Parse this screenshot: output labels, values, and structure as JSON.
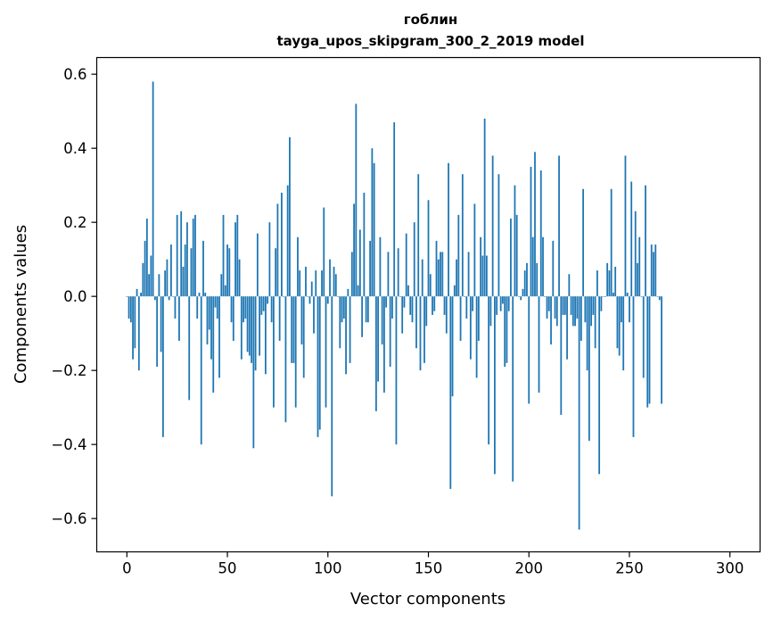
{
  "chart_data": {
    "type": "bar",
    "title_line1": "гоблин",
    "title_line2": "tayga_upos_skipgram_300_2_2019 model",
    "xlabel": "Vector components",
    "ylabel": "Components values",
    "xlim": [
      -15,
      315
    ],
    "ylim": [
      -0.69,
      0.645
    ],
    "xticks": [
      0,
      50,
      100,
      150,
      200,
      250,
      300
    ],
    "xtick_labels": [
      "0",
      "50",
      "100",
      "150",
      "200",
      "250",
      "300"
    ],
    "yticks": [
      -0.6,
      -0.4,
      -0.2,
      0.0,
      0.2,
      0.4,
      0.6
    ],
    "ytick_labels": [
      "−0.6",
      "−0.4",
      "−0.2",
      "0.0",
      "0.2",
      "0.4",
      "0.6"
    ],
    "bar_color": "#1f77b4",
    "grid": false,
    "values": [
      0.0,
      -0.06,
      -0.07,
      -0.17,
      -0.14,
      0.02,
      -0.2,
      0.01,
      0.09,
      0.15,
      0.21,
      0.06,
      0.11,
      0.58,
      -0.01,
      -0.19,
      0.06,
      -0.15,
      -0.38,
      0.07,
      0.1,
      -0.01,
      0.14,
      0.0,
      -0.06,
      0.22,
      -0.12,
      0.23,
      0.08,
      0.14,
      0.2,
      -0.28,
      0.13,
      0.21,
      0.22,
      -0.06,
      0.01,
      -0.4,
      0.15,
      0.01,
      -0.13,
      -0.09,
      -0.17,
      -0.26,
      -0.03,
      -0.06,
      -0.22,
      0.06,
      0.22,
      0.03,
      0.14,
      0.13,
      -0.07,
      -0.12,
      0.2,
      0.22,
      0.1,
      -0.17,
      -0.07,
      -0.06,
      -0.15,
      -0.16,
      -0.18,
      -0.41,
      -0.2,
      0.17,
      -0.16,
      -0.05,
      -0.04,
      -0.21,
      -0.02,
      0.2,
      -0.07,
      -0.3,
      0.13,
      0.25,
      -0.12,
      0.28,
      0.0,
      -0.34,
      0.3,
      0.43,
      -0.18,
      -0.18,
      -0.3,
      0.16,
      0.07,
      -0.13,
      -0.22,
      0.08,
      0.0,
      -0.02,
      0.04,
      -0.1,
      0.07,
      -0.38,
      -0.36,
      0.07,
      0.24,
      -0.3,
      -0.02,
      0.1,
      -0.54,
      0.08,
      0.06,
      0.0,
      -0.14,
      -0.07,
      -0.06,
      -0.21,
      0.02,
      -0.18,
      0.12,
      0.25,
      0.52,
      0.03,
      0.18,
      -0.11,
      0.28,
      -0.07,
      -0.07,
      0.15,
      0.4,
      0.36,
      -0.31,
      -0.23,
      0.16,
      -0.13,
      -0.26,
      -0.03,
      0.12,
      -0.19,
      -0.06,
      0.47,
      -0.4,
      0.13,
      0.0,
      -0.1,
      -0.03,
      0.17,
      0.03,
      -0.05,
      -0.07,
      0.2,
      -0.14,
      0.33,
      -0.2,
      0.1,
      -0.18,
      -0.08,
      0.26,
      0.06,
      -0.05,
      -0.04,
      0.15,
      0.1,
      0.12,
      0.12,
      -0.05,
      -0.1,
      0.36,
      -0.52,
      -0.27,
      0.03,
      0.1,
      0.22,
      -0.12,
      0.33,
      0.0,
      -0.06,
      0.12,
      -0.17,
      -0.04,
      0.25,
      -0.22,
      -0.12,
      0.16,
      0.11,
      0.48,
      0.11,
      -0.4,
      -0.08,
      0.38,
      -0.48,
      -0.05,
      0.33,
      -0.04,
      -0.02,
      -0.19,
      -0.18,
      -0.04,
      0.21,
      -0.5,
      0.3,
      0.22,
      0.0,
      -0.01,
      0.02,
      0.07,
      0.09,
      -0.29,
      0.35,
      0.16,
      0.39,
      0.09,
      -0.26,
      0.34,
      0.16,
      0.0,
      -0.06,
      -0.04,
      -0.13,
      0.15,
      -0.06,
      -0.08,
      0.38,
      -0.32,
      -0.05,
      -0.05,
      -0.17,
      0.06,
      -0.05,
      -0.08,
      -0.08,
      -0.06,
      -0.63,
      -0.12,
      0.29,
      -0.07,
      -0.2,
      -0.39,
      -0.08,
      -0.05,
      -0.14,
      0.07,
      -0.48,
      -0.04,
      0.0,
      0.0,
      0.09,
      0.07,
      0.29,
      0.01,
      0.08,
      -0.14,
      -0.16,
      -0.07,
      -0.2,
      0.38,
      0.01,
      -0.07,
      0.31,
      -0.38,
      0.23,
      0.09,
      0.16,
      0.0,
      -0.22,
      0.3,
      -0.3,
      -0.29,
      0.14,
      0.12,
      0.14,
      0.0,
      -0.01,
      -0.29
    ]
  }
}
